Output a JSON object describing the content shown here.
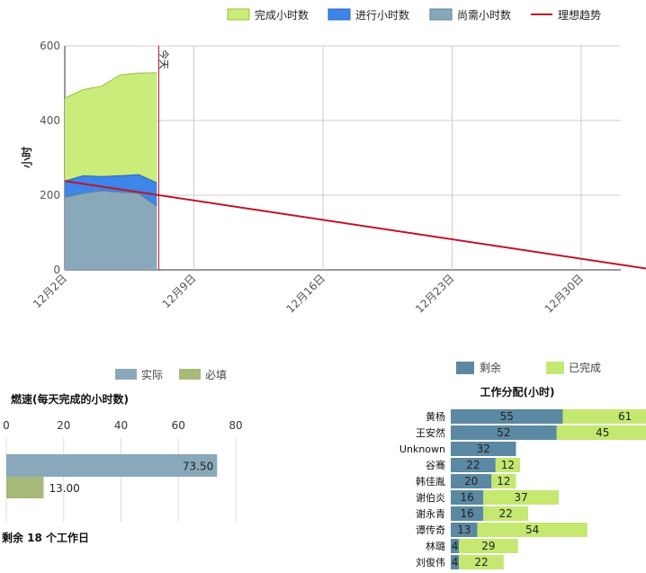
{
  "chart_data": [
    {
      "type": "area",
      "name": "burndown",
      "legend": [
        "完成小时数",
        "进行小时数",
        "尚需小时数",
        "理想趋势"
      ],
      "ylabel": "小时",
      "ylim": [
        0,
        600
      ],
      "yticks": [
        0,
        200,
        400,
        600
      ],
      "xticks": [
        "12月2日",
        "12月9日",
        "12月16日",
        "12月23日",
        "12月30日"
      ],
      "today_label": "今天",
      "colors": {
        "completed": "#cbeb7a",
        "in_progress": "#3d85e8",
        "remaining": "#89a9bb",
        "ideal": "#c0142a"
      },
      "days": [
        0,
        1,
        2,
        3,
        4,
        5
      ],
      "series": [
        {
          "name": "尚需小时数",
          "values": [
            195,
            205,
            212,
            208,
            205,
            170
          ]
        },
        {
          "name": "进行小时数",
          "values": [
            238,
            252,
            250,
            252,
            255,
            233
          ]
        },
        {
          "name": "完成小时数",
          "values": [
            460,
            483,
            492,
            522,
            527,
            528
          ]
        }
      ],
      "ideal": {
        "start_day": 0,
        "start_value": 238,
        "end_day": 32,
        "end_value": 0
      },
      "today_day": 5
    },
    {
      "type": "bar",
      "name": "velocity",
      "title": "燃速(每天完成的小时数)",
      "legend": [
        "实际",
        "必填"
      ],
      "xlim": [
        0,
        80
      ],
      "xticks": [
        0,
        20,
        40,
        60,
        80
      ],
      "colors": {
        "actual": "#89a9bb",
        "required": "#a7ba7a"
      },
      "series": [
        {
          "name": "实际",
          "value": 73.5,
          "label": "73.50"
        },
        {
          "name": "必填",
          "value": 13,
          "label": "13.00"
        }
      ],
      "footer": "剩余  18  个工作日"
    },
    {
      "type": "bar",
      "name": "work-allocation",
      "title": "工作分配(小时)",
      "legend": [
        "剩余",
        "已完成"
      ],
      "colors": {
        "remaining": "#5b88a2",
        "done": "#c4e870"
      },
      "categories": [
        "黄杨",
        "王安然",
        "Unknown",
        "谷骞",
        "韩佳胤",
        "谢伯炎",
        "谢永青",
        "谭传奇",
        "林璐",
        "刘俊伟"
      ],
      "series": [
        {
          "name": "剩余",
          "values": [
            55,
            52,
            32,
            22,
            20,
            16,
            16,
            13,
            4,
            4
          ]
        },
        {
          "name": "已完成",
          "values": [
            61,
            45,
            0,
            12,
            12,
            37,
            22,
            54,
            29,
            22
          ]
        }
      ]
    }
  ]
}
